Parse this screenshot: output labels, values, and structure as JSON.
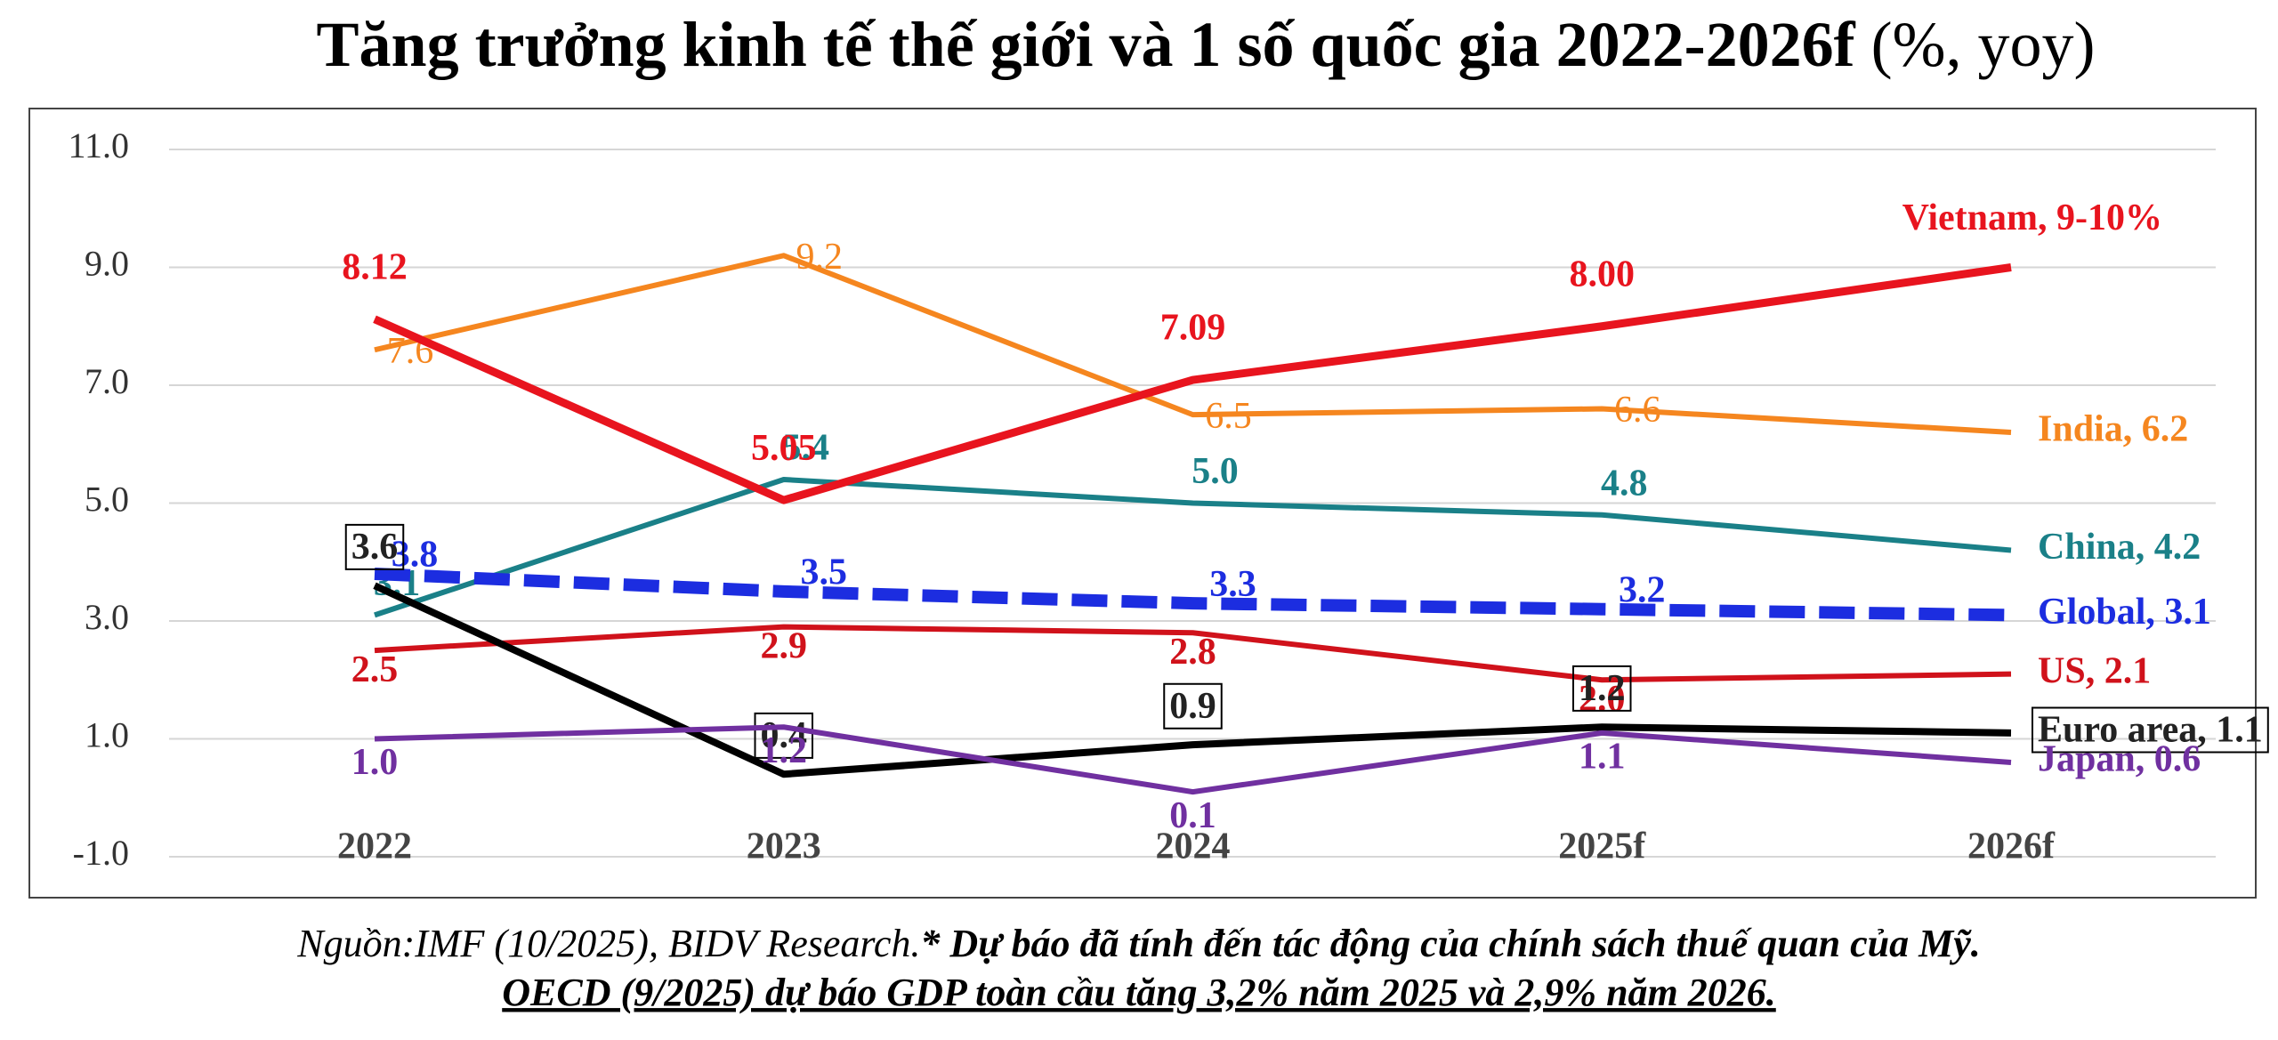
{
  "chart_data": {
    "type": "line",
    "title": "Tăng trưởng kinh tế thế giới và 1 số quốc gia 2022-2026f",
    "title_unit": "(%, yoy)",
    "source": "Nguồn:IMF (10/2025), BIDV Research.",
    "note": "* Dự báo đã tính đến tác động của chính sách thuế quan của Mỹ.",
    "note2": "OECD (9/2025) dự báo GDP toàn cầu tăng 3,2% năm 2025 và 2,9% năm 2026.",
    "categories": [
      "2022",
      "2023",
      "2024",
      "2025f",
      "2026f"
    ],
    "ylim": [
      -1,
      11
    ],
    "yticks": [
      {
        "value": -1,
        "label": "-1.0"
      },
      {
        "value": 1,
        "label": "1.0"
      },
      {
        "value": 3,
        "label": "3.0"
      },
      {
        "value": 5,
        "label": "5.0"
      },
      {
        "value": 7,
        "label": "7.0"
      },
      {
        "value": 9,
        "label": "9.0"
      },
      {
        "value": 11,
        "label": "11.0"
      }
    ],
    "grid": true,
    "series": [
      {
        "name": "India, 6.2",
        "color": "#f5861f",
        "values": [
          7.6,
          9.2,
          6.5,
          6.6,
          6.2
        ],
        "value_labels": [
          "7.6",
          "9.2",
          "6.5",
          "6.6",
          null
        ]
      },
      {
        "name": "China, 4.2",
        "color": "#1a8088",
        "values": [
          3.1,
          5.4,
          5.0,
          4.8,
          4.2
        ],
        "value_labels": [
          "3.1",
          "5.4",
          "5.0",
          "4.8",
          null
        ]
      },
      {
        "name": "Global, 3.1",
        "color": "#1c2de0",
        "style": "dashed",
        "values": [
          3.8,
          3.5,
          3.3,
          3.2,
          3.1
        ],
        "value_labels": [
          "3.8",
          "3.5",
          "3.3",
          "3.2",
          null
        ]
      },
      {
        "name": "US, 2.1",
        "color": "#d0121b",
        "values": [
          2.5,
          2.9,
          2.8,
          2.0,
          2.1
        ],
        "value_labels": [
          "2.5",
          "2.9",
          "2.8",
          "2.0",
          null
        ]
      },
      {
        "name": "Euro area, 1.1",
        "color": "#000000",
        "label_box": true,
        "values": [
          3.6,
          0.4,
          0.9,
          1.2,
          1.1
        ],
        "value_labels": [
          "3.6",
          "0.4",
          "0.9",
          "1.2",
          null
        ]
      },
      {
        "name": "Japan, 0.6",
        "color": "#7030a0",
        "values": [
          1.0,
          1.2,
          0.1,
          1.1,
          0.6
        ],
        "value_labels": [
          "1.0",
          "1.2",
          "0.1",
          "1.1",
          null
        ]
      },
      {
        "name": "Vietnam, 9-10%",
        "color": "#e8141e",
        "values": [
          8.12,
          5.05,
          7.09,
          8.0,
          9.0
        ],
        "value_labels": [
          "8.12",
          "5.05",
          "7.09",
          "8.00",
          null
        ]
      }
    ]
  }
}
